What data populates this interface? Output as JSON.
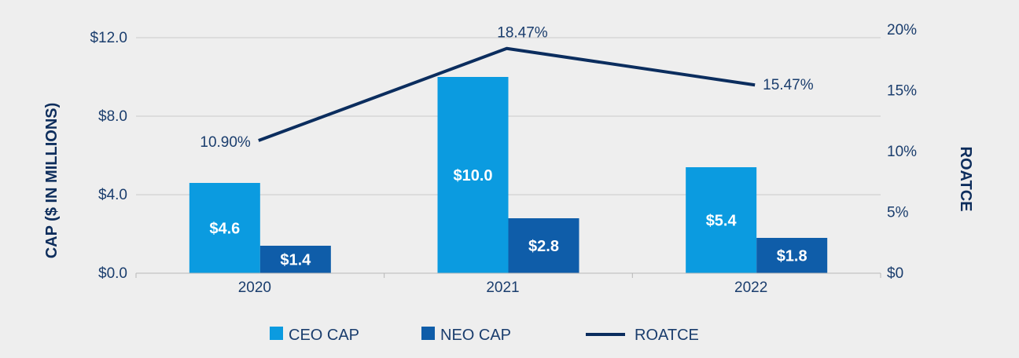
{
  "chart_data": {
    "type": "bar",
    "categories": [
      "2020",
      "2021",
      "2022"
    ],
    "series": [
      {
        "name": "CEO CAP",
        "type": "bar",
        "axis": "left",
        "values": [
          4.6,
          10.0,
          5.4
        ],
        "labels": [
          "$4.6",
          "$10.0",
          "$5.4"
        ],
        "color": "#0b9be0"
      },
      {
        "name": "NEO CAP",
        "type": "bar",
        "axis": "left",
        "values": [
          1.4,
          2.8,
          1.8
        ],
        "labels": [
          "$1.4",
          "$2.8",
          "$1.8"
        ],
        "color": "#0f5da9"
      },
      {
        "name": "ROATCE",
        "type": "line",
        "axis": "right",
        "values": [
          10.9,
          18.47,
          15.47
        ],
        "labels": [
          "10.90%",
          "18.47%",
          "15.47%"
        ],
        "color": "#0b2d5e"
      }
    ],
    "ylabel": "CAP  ($ IN MILLIONS)",
    "y2label": "ROATCE",
    "ylim": [
      0,
      12
    ],
    "y2lim": [
      0,
      20
    ],
    "yticks": [
      0,
      4,
      8,
      12
    ],
    "yticklabels": [
      "$0.0",
      "$4.0",
      "$8.0",
      "$12.0"
    ],
    "y2ticks": [
      0,
      5,
      10,
      15,
      20
    ],
    "y2ticklabels": [
      "$0",
      "5%",
      "10%",
      "15%",
      "20%"
    ],
    "grid": true,
    "legend": "bottom"
  }
}
